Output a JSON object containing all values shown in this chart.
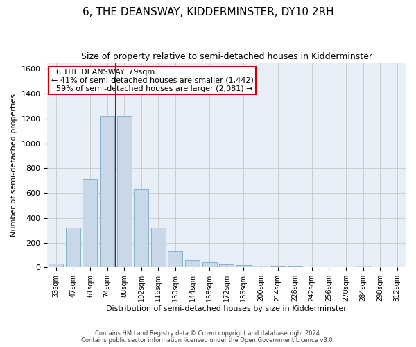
{
  "title": "6, THE DEANSWAY, KIDDERMINSTER, DY10 2RH",
  "subtitle": "Size of property relative to semi-detached houses in Kidderminster",
  "xlabel": "Distribution of semi-detached houses by size in Kidderminster",
  "ylabel": "Number of semi-detached properties",
  "categories": [
    "33sqm",
    "47sqm",
    "61sqm",
    "74sqm",
    "88sqm",
    "102sqm",
    "116sqm",
    "130sqm",
    "144sqm",
    "158sqm",
    "172sqm",
    "186sqm",
    "200sqm",
    "214sqm",
    "228sqm",
    "242sqm",
    "256sqm",
    "270sqm",
    "284sqm",
    "298sqm",
    "312sqm"
  ],
  "values": [
    30,
    320,
    710,
    1220,
    1220,
    630,
    320,
    130,
    60,
    40,
    25,
    20,
    15,
    10,
    5,
    3,
    1,
    0,
    15,
    0,
    0
  ],
  "bar_color": "#c8d8e8",
  "bar_edge_color": "#7aaac8",
  "red_line_index": 3.5,
  "annotation_text": "  6 THE DEANSWAY: 79sqm  \n← 41% of semi-detached houses are smaller (1,442)\n  59% of semi-detached houses are larger (2,081) →",
  "annotation_box_color": "#ffffff",
  "annotation_box_edge": "#cc0000",
  "red_line_color": "#cc0000",
  "ylim": [
    0,
    1650
  ],
  "yticks": [
    0,
    200,
    400,
    600,
    800,
    1000,
    1200,
    1400,
    1600
  ],
  "grid_color": "#cccccc",
  "bg_color": "#e8eef8",
  "footer_line1": "Contains HM Land Registry data © Crown copyright and database right 2024.",
  "footer_line2": "Contains public sector information licensed under the Open Government Licence v3.0.",
  "title_fontsize": 11,
  "subtitle_fontsize": 9,
  "xlabel_fontsize": 8,
  "ylabel_fontsize": 8,
  "annotation_fontsize": 8
}
